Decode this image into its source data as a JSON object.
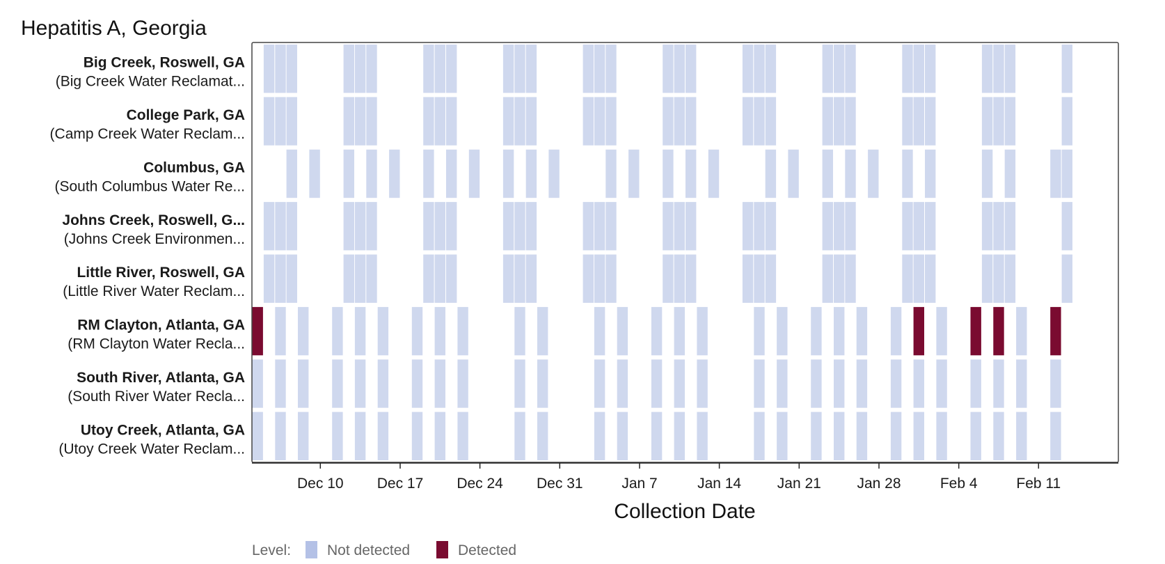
{
  "chart_data": {
    "type": "heatmap",
    "title": "Hepatitis A, Georgia",
    "xlabel": "Collection Date",
    "ylabel": "",
    "x_ticks": [
      "Dec 10",
      "Dec 17",
      "Dec 24",
      "Dec 31",
      "Jan 7",
      "Jan 14",
      "Jan 21",
      "Jan 28",
      "Feb 4",
      "Feb 11"
    ],
    "x_range": [
      "2023-12-04",
      "2024-02-18"
    ],
    "legend": {
      "title": "Level:",
      "placement": "bottom-left",
      "entries": [
        {
          "label": "Not detected",
          "color": "#b4c1e6"
        },
        {
          "label": "Detected",
          "color": "#7a0b30"
        }
      ]
    },
    "colors": {
      "not_detected_bar": "#cfd8ee",
      "detected_bar": "#7a0b30",
      "frame": "#444444",
      "axis": "#222222"
    },
    "rows": [
      {
        "name": "Big Creek, Roswell, GA",
        "subtitle": "(Big Creek Water Reclamat...",
        "not_detected": [
          "2023-12-05",
          "2023-12-06",
          "2023-12-07",
          "2023-12-12",
          "2023-12-13",
          "2023-12-14",
          "2023-12-19",
          "2023-12-20",
          "2023-12-21",
          "2023-12-26",
          "2023-12-27",
          "2023-12-28",
          "2024-01-02",
          "2024-01-03",
          "2024-01-04",
          "2024-01-09",
          "2024-01-10",
          "2024-01-11",
          "2024-01-16",
          "2024-01-17",
          "2024-01-18",
          "2024-01-23",
          "2024-01-24",
          "2024-01-25",
          "2024-01-30",
          "2024-01-31",
          "2024-02-01",
          "2024-02-06",
          "2024-02-07",
          "2024-02-08",
          "2024-02-13"
        ],
        "detected": []
      },
      {
        "name": "College Park, GA",
        "subtitle": "(Camp Creek Water Reclam...",
        "not_detected": [
          "2023-12-05",
          "2023-12-06",
          "2023-12-07",
          "2023-12-12",
          "2023-12-13",
          "2023-12-14",
          "2023-12-19",
          "2023-12-20",
          "2023-12-21",
          "2023-12-26",
          "2023-12-27",
          "2023-12-28",
          "2024-01-02",
          "2024-01-03",
          "2024-01-04",
          "2024-01-09",
          "2024-01-10",
          "2024-01-11",
          "2024-01-16",
          "2024-01-17",
          "2024-01-18",
          "2024-01-23",
          "2024-01-24",
          "2024-01-25",
          "2024-01-30",
          "2024-01-31",
          "2024-02-01",
          "2024-02-06",
          "2024-02-07",
          "2024-02-08",
          "2024-02-13"
        ],
        "detected": []
      },
      {
        "name": "Columbus, GA",
        "subtitle": "(South Columbus Water Re...",
        "not_detected": [
          "2023-12-07",
          "2023-12-09",
          "2023-12-12",
          "2023-12-14",
          "2023-12-16",
          "2023-12-19",
          "2023-12-21",
          "2023-12-23",
          "2023-12-26",
          "2023-12-28",
          "2023-12-30",
          "2024-01-04",
          "2024-01-06",
          "2024-01-09",
          "2024-01-11",
          "2024-01-13",
          "2024-01-18",
          "2024-01-20",
          "2024-01-23",
          "2024-01-25",
          "2024-01-27",
          "2024-01-30",
          "2024-02-01",
          "2024-02-06",
          "2024-02-08",
          "2024-02-12",
          "2024-02-13"
        ],
        "detected": []
      },
      {
        "name": "Johns Creek, Roswell, G...",
        "subtitle": "(Johns Creek Environmen...",
        "not_detected": [
          "2023-12-05",
          "2023-12-06",
          "2023-12-07",
          "2023-12-12",
          "2023-12-13",
          "2023-12-14",
          "2023-12-19",
          "2023-12-20",
          "2023-12-21",
          "2023-12-26",
          "2023-12-27",
          "2023-12-28",
          "2024-01-02",
          "2024-01-03",
          "2024-01-04",
          "2024-01-09",
          "2024-01-10",
          "2024-01-11",
          "2024-01-16",
          "2024-01-17",
          "2024-01-18",
          "2024-01-23",
          "2024-01-24",
          "2024-01-25",
          "2024-01-30",
          "2024-01-31",
          "2024-02-01",
          "2024-02-06",
          "2024-02-07",
          "2024-02-08",
          "2024-02-13"
        ],
        "detected": []
      },
      {
        "name": "Little River, Roswell, GA",
        "subtitle": "(Little River Water Reclam...",
        "not_detected": [
          "2023-12-05",
          "2023-12-06",
          "2023-12-07",
          "2023-12-12",
          "2023-12-13",
          "2023-12-14",
          "2023-12-19",
          "2023-12-20",
          "2023-12-21",
          "2023-12-26",
          "2023-12-27",
          "2023-12-28",
          "2024-01-02",
          "2024-01-03",
          "2024-01-04",
          "2024-01-09",
          "2024-01-10",
          "2024-01-11",
          "2024-01-16",
          "2024-01-17",
          "2024-01-18",
          "2024-01-23",
          "2024-01-24",
          "2024-01-25",
          "2024-01-30",
          "2024-01-31",
          "2024-02-01",
          "2024-02-06",
          "2024-02-07",
          "2024-02-08",
          "2024-02-13"
        ],
        "detected": []
      },
      {
        "name": "RM Clayton, Atlanta, GA",
        "subtitle": "(RM Clayton Water Recla...",
        "not_detected": [
          "2023-12-06",
          "2023-12-08",
          "2023-12-11",
          "2023-12-13",
          "2023-12-15",
          "2023-12-18",
          "2023-12-20",
          "2023-12-22",
          "2023-12-27",
          "2023-12-29",
          "2024-01-03",
          "2024-01-05",
          "2024-01-08",
          "2024-01-10",
          "2024-01-12",
          "2024-01-17",
          "2024-01-19",
          "2024-01-22",
          "2024-01-24",
          "2024-01-26",
          "2024-01-29",
          "2024-02-02",
          "2024-02-09"
        ],
        "detected": [
          "2023-12-04",
          "2024-01-31",
          "2024-02-05",
          "2024-02-07",
          "2024-02-12"
        ]
      },
      {
        "name": "South River, Atlanta, GA",
        "subtitle": "(South River Water Recla...",
        "not_detected": [
          "2023-12-04",
          "2023-12-06",
          "2023-12-08",
          "2023-12-11",
          "2023-12-13",
          "2023-12-15",
          "2023-12-18",
          "2023-12-20",
          "2023-12-22",
          "2023-12-27",
          "2023-12-29",
          "2024-01-03",
          "2024-01-05",
          "2024-01-08",
          "2024-01-10",
          "2024-01-12",
          "2024-01-17",
          "2024-01-19",
          "2024-01-22",
          "2024-01-24",
          "2024-01-26",
          "2024-01-29",
          "2024-01-31",
          "2024-02-02",
          "2024-02-05",
          "2024-02-07",
          "2024-02-09",
          "2024-02-12"
        ],
        "detected": []
      },
      {
        "name": "Utoy Creek, Atlanta, GA",
        "subtitle": "(Utoy Creek Water Reclam...",
        "not_detected": [
          "2023-12-04",
          "2023-12-06",
          "2023-12-08",
          "2023-12-11",
          "2023-12-13",
          "2023-12-15",
          "2023-12-18",
          "2023-12-20",
          "2023-12-22",
          "2023-12-27",
          "2023-12-29",
          "2024-01-03",
          "2024-01-05",
          "2024-01-08",
          "2024-01-10",
          "2024-01-12",
          "2024-01-17",
          "2024-01-19",
          "2024-01-22",
          "2024-01-24",
          "2024-01-26",
          "2024-01-29",
          "2024-01-31",
          "2024-02-02",
          "2024-02-05",
          "2024-02-07",
          "2024-02-09",
          "2024-02-12"
        ],
        "detected": []
      }
    ]
  }
}
